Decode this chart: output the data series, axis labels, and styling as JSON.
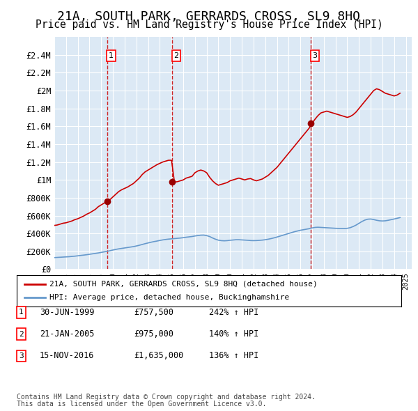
{
  "title": "21A, SOUTH PARK, GERRARDS CROSS, SL9 8HQ",
  "subtitle": "Price paid vs. HM Land Registry's House Price Index (HPI)",
  "title_fontsize": 13,
  "subtitle_fontsize": 10.5,
  "ylabel": "",
  "xlabel": "",
  "ylim": [
    0,
    2600000
  ],
  "yticks": [
    0,
    200000,
    400000,
    600000,
    800000,
    1000000,
    1200000,
    1400000,
    1600000,
    1800000,
    2000000,
    2200000,
    2400000
  ],
  "ytick_labels": [
    "£0",
    "£200K",
    "£400K",
    "£600K",
    "£800K",
    "£1M",
    "£1.2M",
    "£1.4M",
    "£1.6M",
    "£1.8M",
    "£2M",
    "£2.2M",
    "£2.4M"
  ],
  "xlim_start": 1995.0,
  "xlim_end": 2025.5,
  "background_color": "#dce9f5",
  "plot_bg_color": "#dce9f5",
  "red_line_color": "#cc0000",
  "blue_line_color": "#6699cc",
  "sale_marker_color": "#990000",
  "dashed_line_color": "#cc0000",
  "sales": [
    {
      "num": 1,
      "year": 1999.5,
      "price": 757500,
      "label": "30-JUN-1999",
      "amount": "£757,500",
      "pct": "242% ↑ HPI"
    },
    {
      "num": 2,
      "year": 2005.05,
      "price": 975000,
      "label": "21-JAN-2005",
      "amount": "£975,000",
      "pct": "140% ↑ HPI"
    },
    {
      "num": 3,
      "year": 2016.88,
      "price": 1635000,
      "label": "15-NOV-2016",
      "amount": "£1,635,000",
      "pct": "136% ↑ HPI"
    }
  ],
  "legend_line1": "21A, SOUTH PARK, GERRARDS CROSS, SL9 8HQ (detached house)",
  "legend_line2": "HPI: Average price, detached house, Buckinghamshire",
  "footer1": "Contains HM Land Registry data © Crown copyright and database right 2024.",
  "footer2": "This data is licensed under the Open Government Licence v3.0.",
  "hpi_base_index": 100,
  "red_line_data_x": [
    1995.0,
    1995.25,
    1995.5,
    1995.75,
    1996.0,
    1996.25,
    1996.5,
    1996.75,
    1997.0,
    1997.25,
    1997.5,
    1997.75,
    1998.0,
    1998.25,
    1998.5,
    1998.75,
    1999.0,
    1999.25,
    1999.5,
    1999.75,
    2000.0,
    2000.25,
    2000.5,
    2000.75,
    2001.0,
    2001.25,
    2001.5,
    2001.75,
    2002.0,
    2002.25,
    2002.5,
    2002.75,
    2003.0,
    2003.25,
    2003.5,
    2003.75,
    2004.0,
    2004.25,
    2004.5,
    2004.75,
    2005.0,
    2005.25,
    2005.5,
    2005.75,
    2006.0,
    2006.25,
    2006.5,
    2006.75,
    2007.0,
    2007.25,
    2007.5,
    2007.75,
    2008.0,
    2008.25,
    2008.5,
    2008.75,
    2009.0,
    2009.25,
    2009.5,
    2009.75,
    2010.0,
    2010.25,
    2010.5,
    2010.75,
    2011.0,
    2011.25,
    2011.5,
    2011.75,
    2012.0,
    2012.25,
    2012.5,
    2012.75,
    2013.0,
    2013.25,
    2013.5,
    2013.75,
    2014.0,
    2014.25,
    2014.5,
    2014.75,
    2015.0,
    2015.25,
    2015.5,
    2015.75,
    2016.0,
    2016.25,
    2016.5,
    2016.75,
    2017.0,
    2017.25,
    2017.5,
    2017.75,
    2018.0,
    2018.25,
    2018.5,
    2018.75,
    2019.0,
    2019.25,
    2019.5,
    2019.75,
    2020.0,
    2020.25,
    2020.5,
    2020.75,
    2021.0,
    2021.25,
    2021.5,
    2021.75,
    2022.0,
    2022.25,
    2022.5,
    2022.75,
    2023.0,
    2023.25,
    2023.5,
    2023.75,
    2024.0,
    2024.25,
    2024.5
  ],
  "red_line_data_y": [
    490000,
    495000,
    505000,
    515000,
    520000,
    530000,
    540000,
    555000,
    565000,
    580000,
    595000,
    615000,
    630000,
    650000,
    670000,
    700000,
    720000,
    740000,
    757500,
    780000,
    810000,
    840000,
    870000,
    890000,
    905000,
    920000,
    940000,
    960000,
    990000,
    1020000,
    1060000,
    1090000,
    1110000,
    1130000,
    1150000,
    1170000,
    1185000,
    1200000,
    1210000,
    1220000,
    1220000,
    975000,
    980000,
    990000,
    1000000,
    1020000,
    1030000,
    1040000,
    1080000,
    1100000,
    1110000,
    1100000,
    1080000,
    1030000,
    990000,
    960000,
    940000,
    950000,
    960000,
    970000,
    990000,
    1000000,
    1010000,
    1020000,
    1010000,
    1000000,
    1010000,
    1015000,
    1000000,
    990000,
    1000000,
    1010000,
    1030000,
    1050000,
    1080000,
    1110000,
    1140000,
    1180000,
    1220000,
    1260000,
    1300000,
    1340000,
    1380000,
    1420000,
    1460000,
    1500000,
    1540000,
    1580000,
    1635000,
    1680000,
    1720000,
    1750000,
    1760000,
    1770000,
    1760000,
    1750000,
    1740000,
    1730000,
    1720000,
    1710000,
    1700000,
    1710000,
    1730000,
    1760000,
    1800000,
    1840000,
    1880000,
    1920000,
    1960000,
    2000000,
    2020000,
    2010000,
    1990000,
    1970000,
    1960000,
    1950000,
    1940000,
    1950000,
    1970000
  ],
  "blue_line_data_x": [
    1995.0,
    1995.25,
    1995.5,
    1995.75,
    1996.0,
    1996.25,
    1996.5,
    1996.75,
    1997.0,
    1997.25,
    1997.5,
    1997.75,
    1998.0,
    1998.25,
    1998.5,
    1998.75,
    1999.0,
    1999.25,
    1999.5,
    1999.75,
    2000.0,
    2000.25,
    2000.5,
    2000.75,
    2001.0,
    2001.25,
    2001.5,
    2001.75,
    2002.0,
    2002.25,
    2002.5,
    2002.75,
    2003.0,
    2003.25,
    2003.5,
    2003.75,
    2004.0,
    2004.25,
    2004.5,
    2004.75,
    2005.0,
    2005.25,
    2005.5,
    2005.75,
    2006.0,
    2006.25,
    2006.5,
    2006.75,
    2007.0,
    2007.25,
    2007.5,
    2007.75,
    2008.0,
    2008.25,
    2008.5,
    2008.75,
    2009.0,
    2009.25,
    2009.5,
    2009.75,
    2010.0,
    2010.25,
    2010.5,
    2010.75,
    2011.0,
    2011.25,
    2011.5,
    2011.75,
    2012.0,
    2012.25,
    2012.5,
    2012.75,
    2013.0,
    2013.25,
    2013.5,
    2013.75,
    2014.0,
    2014.25,
    2014.5,
    2014.75,
    2015.0,
    2015.25,
    2015.5,
    2015.75,
    2016.0,
    2016.25,
    2016.5,
    2016.75,
    2017.0,
    2017.25,
    2017.5,
    2017.75,
    2018.0,
    2018.25,
    2018.5,
    2018.75,
    2019.0,
    2019.25,
    2019.5,
    2019.75,
    2020.0,
    2020.25,
    2020.5,
    2020.75,
    2021.0,
    2021.25,
    2021.5,
    2021.75,
    2022.0,
    2022.25,
    2022.5,
    2022.75,
    2023.0,
    2023.25,
    2023.5,
    2023.75,
    2024.0,
    2024.25,
    2024.5
  ],
  "blue_line_data_y": [
    130000,
    132000,
    134000,
    136000,
    138000,
    140000,
    143000,
    146000,
    150000,
    154000,
    158000,
    162000,
    167000,
    172000,
    177000,
    182000,
    188000,
    194000,
    200000,
    207000,
    215000,
    222000,
    228000,
    233000,
    238000,
    243000,
    248000,
    253000,
    260000,
    268000,
    277000,
    286000,
    294000,
    302000,
    309000,
    315000,
    322000,
    328000,
    333000,
    337000,
    340000,
    343000,
    346000,
    349000,
    353000,
    358000,
    362000,
    366000,
    372000,
    377000,
    381000,
    382000,
    376000,
    366000,
    350000,
    336000,
    325000,
    320000,
    318000,
    320000,
    324000,
    327000,
    330000,
    330000,
    328000,
    326000,
    324000,
    321000,
    320000,
    321000,
    323000,
    326000,
    330000,
    336000,
    343000,
    351000,
    360000,
    370000,
    380000,
    390000,
    400000,
    410000,
    420000,
    428000,
    436000,
    442000,
    448000,
    454000,
    462000,
    468000,
    470000,
    468000,
    466000,
    464000,
    462000,
    460000,
    458000,
    457000,
    456000,
    455000,
    458000,
    465000,
    478000,
    494000,
    514000,
    534000,
    550000,
    560000,
    562000,
    556000,
    548000,
    542000,
    540000,
    542000,
    548000,
    555000,
    562000,
    570000,
    578000
  ]
}
